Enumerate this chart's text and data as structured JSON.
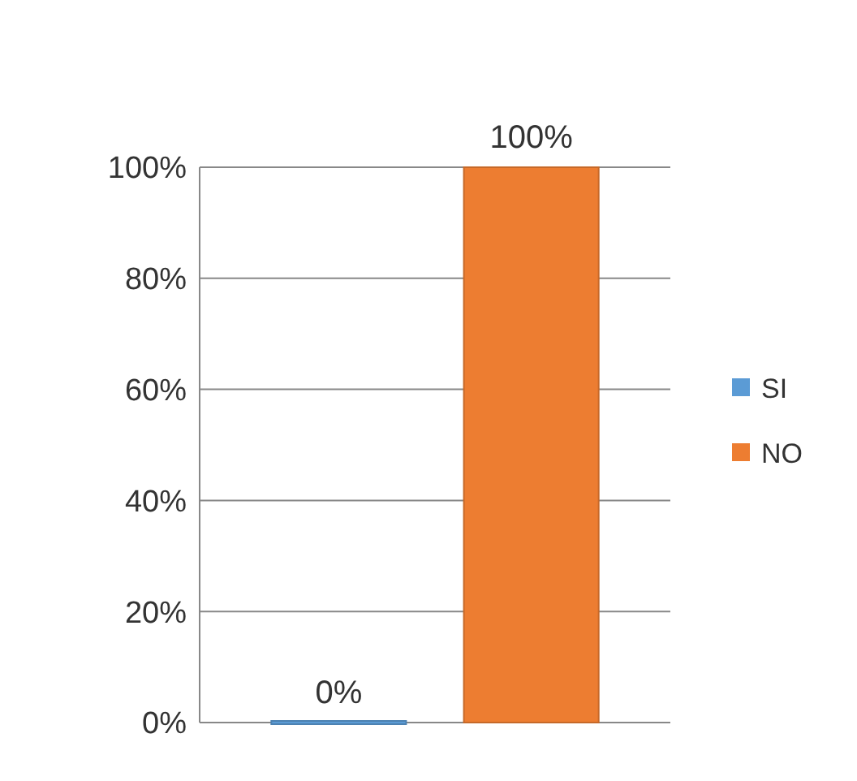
{
  "chart_data": {
    "type": "bar",
    "categories": [
      null
    ],
    "series": [
      {
        "name": "SI",
        "color": "#5b9bd5",
        "values": [
          0
        ],
        "value_labels": [
          "0%"
        ]
      },
      {
        "name": "NO",
        "color": "#ed7d31",
        "values": [
          100
        ],
        "value_labels": [
          "100%"
        ]
      }
    ],
    "ylim": [
      0,
      100
    ],
    "yticks": [
      {
        "value": 0,
        "label": "0%"
      },
      {
        "value": 20,
        "label": "20%"
      },
      {
        "value": 40,
        "label": "40%"
      },
      {
        "value": 60,
        "label": "60%"
      },
      {
        "value": 80,
        "label": "80%"
      },
      {
        "value": 100,
        "label": "100%"
      }
    ],
    "grid": "y",
    "legend": "right"
  }
}
